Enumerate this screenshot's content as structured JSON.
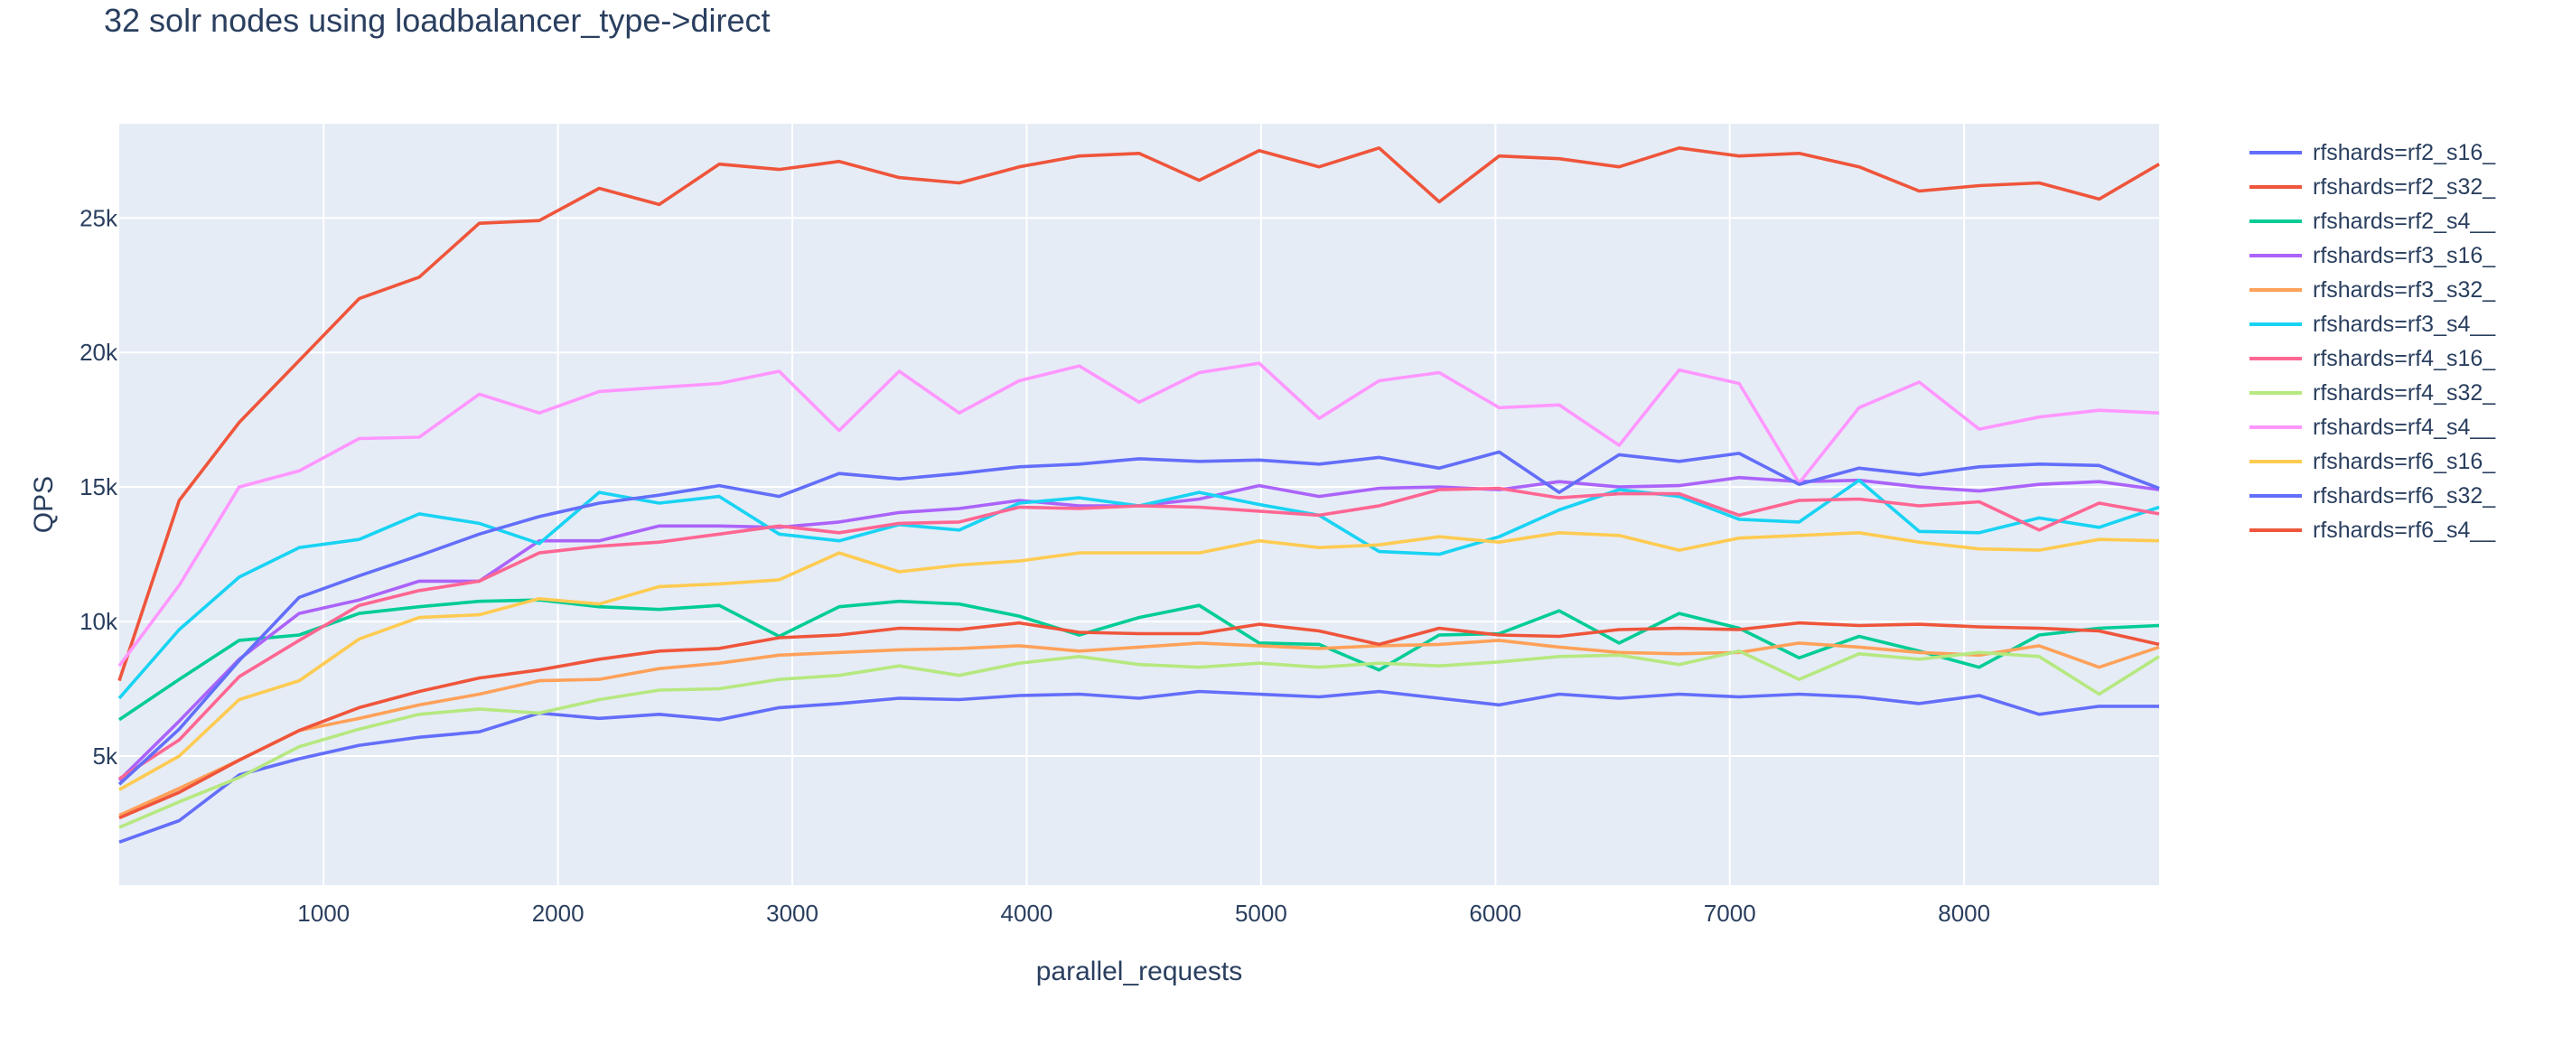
{
  "chart_data": {
    "type": "line",
    "title": "32 solr nodes using loadbalancer_type->direct",
    "xlabel": "parallel_requests",
    "ylabel": "QPS",
    "xlim": [
      128,
      8832
    ],
    "ylim": [
      200,
      28500
    ],
    "xticks": [
      1000,
      2000,
      3000,
      4000,
      5000,
      6000,
      7000,
      8000
    ],
    "xtick_labels": [
      "1000",
      "2000",
      "3000",
      "4000",
      "5000",
      "6000",
      "7000",
      "8000"
    ],
    "yticks": [
      5000,
      10000,
      15000,
      20000,
      25000
    ],
    "ytick_labels": [
      "5k",
      "10k",
      "15k",
      "20k",
      "25k"
    ],
    "grid": true,
    "legend_position": "right",
    "x": [
      128,
      384,
      640,
      896,
      1152,
      1408,
      1664,
      1920,
      2176,
      2432,
      2688,
      2944,
      3200,
      3456,
      3712,
      3968,
      4224,
      4480,
      4736,
      4992,
      5248,
      5504,
      5760,
      6016,
      6272,
      6528,
      6784,
      7040,
      7296,
      7552,
      7808,
      8064,
      8320,
      8576,
      8832
    ],
    "series": [
      {
        "name": "rfshards=rf2_s16_",
        "color": "#636efa",
        "values": [
          1800,
          2600,
          4300,
          4900,
          5400,
          5700,
          5900,
          6600,
          6400,
          6550,
          6350,
          6800,
          6950,
          7150,
          7100,
          7250,
          7300,
          7150,
          7400,
          7300,
          7200,
          7400,
          7150,
          6900,
          7300,
          7150,
          7300,
          7200,
          7300,
          7200,
          6950,
          7250,
          6550,
          6850,
          6850
        ]
      },
      {
        "name": "rfshards=rf2_s32_",
        "color": "#EF553B",
        "values": [
          7800,
          14500,
          17400,
          19700,
          22000,
          22800,
          24800,
          24900,
          26100,
          25500,
          27000,
          26800,
          27100,
          26500,
          26300,
          26900,
          27300,
          27400,
          26400,
          27500,
          26900,
          27600,
          25600,
          27300,
          27200,
          26900,
          27600,
          27300,
          27400,
          26900,
          26000,
          26200,
          26300,
          25700,
          27000
        ]
      },
      {
        "name": "rfshards=rf2_s4__",
        "color": "#00cc96",
        "values": [
          6350,
          7850,
          9300,
          9500,
          10300,
          10550,
          10750,
          10800,
          10550,
          10450,
          10600,
          9450,
          10550,
          10750,
          10650,
          10200,
          9500,
          10150,
          10600,
          9200,
          9150,
          8200,
          9500,
          9550,
          10400,
          9200,
          10300,
          9750,
          8650,
          9450,
          8900,
          8300,
          9500,
          9750,
          9850
        ]
      },
      {
        "name": "rfshards=rf3_s16_",
        "color": "#ab63fa",
        "values": [
          4100,
          6300,
          8600,
          10300,
          10800,
          11500,
          11500,
          13000,
          13000,
          13550,
          13550,
          13500,
          13700,
          14050,
          14200,
          14500,
          14300,
          14300,
          14550,
          15050,
          14650,
          14950,
          15000,
          14900,
          15200,
          15000,
          15050,
          15350,
          15200,
          15250,
          15000,
          14850,
          15100,
          15200,
          14900
        ]
      },
      {
        "name": "rfshards=rf3_s32_",
        "color": "#FFA15A",
        "values": [
          2800,
          3800,
          4850,
          5950,
          6400,
          6900,
          7300,
          7800,
          7850,
          8250,
          8450,
          8750,
          8850,
          8950,
          9000,
          9100,
          8900,
          9050,
          9200,
          9100,
          9000,
          9100,
          9150,
          9300,
          9050,
          8850,
          8800,
          8850,
          9200,
          9050,
          8850,
          8750,
          9100,
          8300,
          9050
        ]
      },
      {
        "name": "rfshards=rf3_s4__",
        "color": "#19d3f3",
        "values": [
          7150,
          9700,
          11650,
          12750,
          13050,
          14000,
          13650,
          12900,
          14800,
          14400,
          14650,
          13250,
          13000,
          13600,
          13400,
          14400,
          14600,
          14300,
          14800,
          14350,
          13950,
          12600,
          12500,
          13150,
          14150,
          14900,
          14650,
          13800,
          13700,
          15250,
          13350,
          13300,
          13850,
          13500,
          14250
        ]
      },
      {
        "name": "rfshards=rf4_s16_",
        "color": "#FF6692",
        "values": [
          4150,
          5600,
          7950,
          9300,
          10600,
          11150,
          11500,
          12550,
          12800,
          12950,
          13250,
          13550,
          13300,
          13650,
          13700,
          14250,
          14200,
          14300,
          14250,
          14100,
          13950,
          14300,
          14900,
          14950,
          14600,
          14750,
          14750,
          13950,
          14500,
          14550,
          14300,
          14450,
          13400,
          14400,
          14000
        ]
      },
      {
        "name": "rfshards=rf4_s32_",
        "color": "#B6E880",
        "values": [
          2350,
          3300,
          4200,
          5350,
          6000,
          6550,
          6750,
          6600,
          7100,
          7450,
          7500,
          7850,
          8000,
          8350,
          8000,
          8450,
          8700,
          8400,
          8300,
          8450,
          8300,
          8450,
          8350,
          8500,
          8700,
          8750,
          8400,
          8900,
          7850,
          8800,
          8600,
          8850,
          8700,
          7300,
          8700
        ]
      },
      {
        "name": "rfshards=rf4_s4__",
        "color": "#FF97FF",
        "values": [
          8350,
          11350,
          15000,
          15600,
          16800,
          16850,
          18450,
          17750,
          18550,
          18700,
          18850,
          19300,
          17100,
          19300,
          17750,
          18950,
          19500,
          18150,
          19250,
          19600,
          17550,
          18950,
          19250,
          17950,
          18050,
          16550,
          19350,
          18850,
          15150,
          17950,
          18900,
          17150,
          17600,
          17850,
          17750
        ]
      },
      {
        "name": "rfshards=rf6_s16_",
        "color": "#FECB52",
        "values": [
          3750,
          5000,
          7100,
          7800,
          9350,
          10150,
          10250,
          10850,
          10650,
          11300,
          11400,
          11550,
          12550,
          11850,
          12100,
          12250,
          12550,
          12550,
          12550,
          13000,
          12750,
          12850,
          13150,
          12950,
          13300,
          13200,
          12650,
          13100,
          13200,
          13300,
          12950,
          12700,
          12650,
          13050,
          13000
        ]
      },
      {
        "name": "rfshards=rf6_s32_",
        "color": "#636efa",
        "values": [
          3950,
          6000,
          8550,
          10900,
          11700,
          12450,
          13250,
          13900,
          14400,
          14700,
          15050,
          14650,
          15500,
          15300,
          15500,
          15750,
          15850,
          16050,
          15950,
          16000,
          15850,
          16100,
          15700,
          16300,
          14800,
          16200,
          15950,
          16250,
          15100,
          15700,
          15450,
          15750,
          15850,
          15800,
          14950
        ]
      },
      {
        "name": "rfshards=rf6_s4__",
        "color": "#EF553B",
        "values": [
          2700,
          3650,
          4850,
          5950,
          6800,
          7400,
          7900,
          8200,
          8600,
          8900,
          9000,
          9400,
          9500,
          9750,
          9700,
          9950,
          9600,
          9550,
          9550,
          9900,
          9650,
          9150,
          9750,
          9500,
          9450,
          9700,
          9750,
          9700,
          9950,
          9850,
          9900,
          9800,
          9750,
          9650,
          9150
        ]
      }
    ]
  }
}
